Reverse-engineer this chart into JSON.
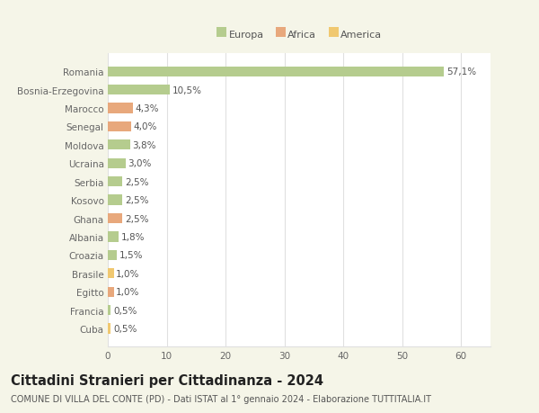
{
  "categories": [
    "Romania",
    "Bosnia-Erzegovina",
    "Marocco",
    "Senegal",
    "Moldova",
    "Ucraina",
    "Serbia",
    "Kosovo",
    "Ghana",
    "Albania",
    "Croazia",
    "Brasile",
    "Egitto",
    "Francia",
    "Cuba"
  ],
  "values": [
    57.1,
    10.5,
    4.3,
    4.0,
    3.8,
    3.0,
    2.5,
    2.5,
    2.5,
    1.8,
    1.5,
    1.0,
    1.0,
    0.5,
    0.5
  ],
  "labels": [
    "57,1%",
    "10,5%",
    "4,3%",
    "4,0%",
    "3,8%",
    "3,0%",
    "2,5%",
    "2,5%",
    "2,5%",
    "1,8%",
    "1,5%",
    "1,0%",
    "1,0%",
    "0,5%",
    "0,5%"
  ],
  "continent": [
    "Europa",
    "Europa",
    "Africa",
    "Africa",
    "Europa",
    "Europa",
    "Europa",
    "Europa",
    "Africa",
    "Europa",
    "Europa",
    "America",
    "Africa",
    "Europa",
    "America"
  ],
  "colors": {
    "Europa": "#b5cc8e",
    "Africa": "#e8a87c",
    "America": "#f0c870"
  },
  "legend_items": [
    "Europa",
    "Africa",
    "America"
  ],
  "xlim": [
    0,
    65
  ],
  "xticks": [
    0,
    10,
    20,
    30,
    40,
    50,
    60
  ],
  "title": "Cittadini Stranieri per Cittadinanza - 2024",
  "subtitle": "COMUNE DI VILLA DEL CONTE (PD) - Dati ISTAT al 1° gennaio 2024 - Elaborazione TUTTITALIA.IT",
  "background_color": "#f5f5e8",
  "plot_background": "#ffffff",
  "grid_color": "#e0e0e0",
  "title_fontsize": 10.5,
  "subtitle_fontsize": 7,
  "label_fontsize": 7.5,
  "tick_fontsize": 7.5,
  "legend_fontsize": 8
}
